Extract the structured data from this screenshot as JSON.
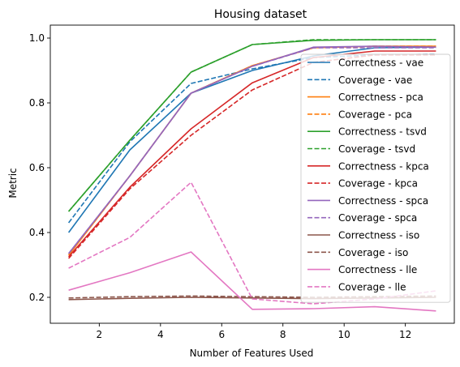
{
  "chart_data": {
    "type": "line",
    "title": "Housing dataset",
    "xlabel": "Number of Features Used",
    "ylabel": "Metric",
    "xlim": [
      0.4,
      13.6
    ],
    "ylim": [
      0.12,
      1.04
    ],
    "xticks": [
      2,
      4,
      6,
      8,
      10,
      12
    ],
    "yticks": [
      0.2,
      0.4,
      0.6,
      0.8,
      1.0
    ],
    "ytick_labels": [
      "0.2",
      "0.4",
      "0.6",
      "0.8",
      "1.0"
    ],
    "legend_position": "right",
    "grid": false,
    "x": [
      1,
      3,
      5,
      7,
      9,
      11,
      13
    ],
    "series": [
      {
        "name": "Correctness - vae",
        "color": "#1f77b4",
        "style": "solid",
        "values": [
          0.4,
          0.655,
          0.83,
          0.9,
          0.945,
          0.97,
          0.972
        ]
      },
      {
        "name": "Coverage - vae",
        "color": "#1f77b4",
        "style": "dashed",
        "values": [
          0.43,
          0.68,
          0.86,
          0.905,
          0.94,
          0.948,
          0.95
        ]
      },
      {
        "name": "Correctness - pca",
        "color": "#ff7f0e",
        "style": "solid",
        "values": [
          0.33,
          0.575,
          0.83,
          0.915,
          0.97,
          0.975,
          0.975
        ]
      },
      {
        "name": "Coverage - pca",
        "color": "#ff7f0e",
        "style": "dashed",
        "values": [
          0.33,
          0.575,
          0.83,
          0.915,
          0.97,
          0.975,
          0.975
        ]
      },
      {
        "name": "Correctness - tsvd",
        "color": "#2ca02c",
        "style": "solid",
        "values": [
          0.465,
          0.685,
          0.895,
          0.98,
          0.993,
          0.995,
          0.995
        ]
      },
      {
        "name": "Coverage - tsvd",
        "color": "#2ca02c",
        "style": "dashed",
        "values": [
          0.465,
          0.685,
          0.895,
          0.98,
          0.995,
          0.995,
          0.995
        ]
      },
      {
        "name": "Correctness - kpca",
        "color": "#d62728",
        "style": "solid",
        "values": [
          0.325,
          0.54,
          0.72,
          0.862,
          0.94,
          0.96,
          0.96
        ]
      },
      {
        "name": "Coverage - kpca",
        "color": "#d62728",
        "style": "dashed",
        "values": [
          0.32,
          0.535,
          0.7,
          0.84,
          0.925,
          0.948,
          0.948
        ]
      },
      {
        "name": "Correctness - spca",
        "color": "#9467bd",
        "style": "solid",
        "values": [
          0.335,
          0.575,
          0.83,
          0.913,
          0.972,
          0.975,
          0.972
        ]
      },
      {
        "name": "Coverage - spca",
        "color": "#9467bd",
        "style": "dashed",
        "values": [
          0.335,
          0.575,
          0.83,
          0.913,
          0.97,
          0.97,
          0.97
        ]
      },
      {
        "name": "Correctness - iso",
        "color": "#8c564b",
        "style": "solid",
        "values": [
          0.193,
          0.197,
          0.2,
          0.198,
          0.196,
          0.198,
          0.2
        ]
      },
      {
        "name": "Coverage - iso",
        "color": "#8c564b",
        "style": "dashed",
        "values": [
          0.198,
          0.202,
          0.204,
          0.202,
          0.2,
          0.202,
          0.204
        ]
      },
      {
        "name": "Correctness - lle",
        "color": "#e377c2",
        "style": "solid",
        "values": [
          0.222,
          0.276,
          0.34,
          0.163,
          0.165,
          0.171,
          0.158
        ]
      },
      {
        "name": "Coverage - lle",
        "color": "#e377c2",
        "style": "dashed",
        "values": [
          0.29,
          0.385,
          0.555,
          0.195,
          0.18,
          0.195,
          0.22
        ]
      }
    ]
  }
}
